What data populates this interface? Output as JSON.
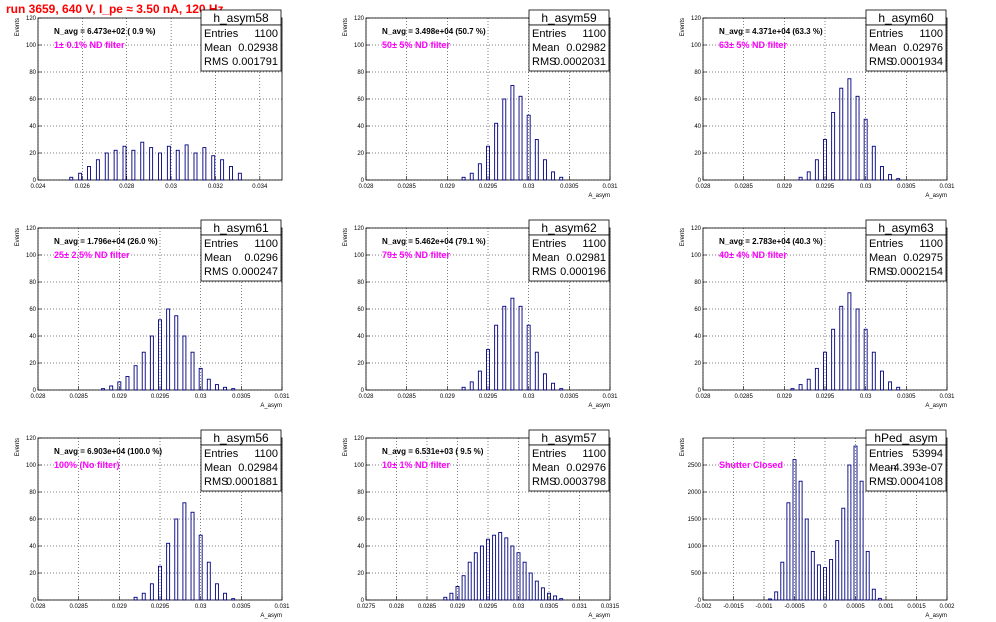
{
  "title": "run 3659,   640 V, I_pe ≈ 3.50 nA, 120 Hz",
  "stat_labels": {
    "entries": "Entries",
    "mean": "Mean",
    "rms": "RMS"
  },
  "chart_data": [
    {
      "type": "bar",
      "name": "h_asym58",
      "n_avg": "N_avg = 6.473e+02 ( 0.9 %)",
      "filter": "1± 0.1% ND filter",
      "entries": "1100",
      "mean": "0.02938",
      "rms": "0.001791",
      "xlim": [
        0.024,
        0.035
      ],
      "ylim": [
        0,
        120
      ],
      "xticks": [
        "0.024",
        "0.026",
        "0.028",
        "0.03",
        "0.032",
        "0.034"
      ],
      "xtick_vals": [
        0.024,
        0.026,
        0.028,
        0.03,
        0.032,
        0.034
      ],
      "yticks": [
        0,
        20,
        40,
        60,
        80,
        100,
        120
      ],
      "xlabel": "",
      "ylabel": "Events",
      "x": [
        0.0255,
        0.0259,
        0.0263,
        0.0267,
        0.0271,
        0.0275,
        0.0279,
        0.0283,
        0.0287,
        0.0291,
        0.0295,
        0.0299,
        0.0303,
        0.0307,
        0.0311,
        0.0315,
        0.0319,
        0.0323,
        0.0327,
        0.0331
      ],
      "values": [
        2,
        5,
        10,
        15,
        20,
        22,
        25,
        22,
        28,
        24,
        20,
        25,
        22,
        26,
        20,
        24,
        18,
        15,
        10,
        5
      ]
    },
    {
      "type": "bar",
      "name": "h_asym59",
      "n_avg": "N_avg = 3.498e+04 (50.7 %)",
      "filter": "50± 5% ND filter",
      "entries": "1100",
      "mean": "0.02982",
      "rms": "0.0002031",
      "xlim": [
        0.028,
        0.031
      ],
      "ylim": [
        0,
        120
      ],
      "xticks": [
        "0.028",
        "0.0285",
        "0.029",
        "0.0295",
        "0.03",
        "0.0305",
        "0.031"
      ],
      "xtick_vals": [
        0.028,
        0.0285,
        0.029,
        0.0295,
        0.03,
        0.0305,
        0.031
      ],
      "yticks": [
        0,
        20,
        40,
        60,
        80,
        100,
        120
      ],
      "xlabel": "A_asym",
      "ylabel": "Events",
      "x": [
        0.0292,
        0.0293,
        0.0294,
        0.0295,
        0.0296,
        0.0297,
        0.0298,
        0.0299,
        0.03,
        0.0301,
        0.0302,
        0.0303,
        0.0304
      ],
      "values": [
        2,
        5,
        12,
        25,
        42,
        60,
        70,
        62,
        48,
        30,
        15,
        6,
        2
      ]
    },
    {
      "type": "bar",
      "name": "h_asym60",
      "n_avg": "N_avg = 4.371e+04 (63.3 %)",
      "filter": "63± 5% ND filter",
      "entries": "1100",
      "mean": "0.02976",
      "rms": "0.0001934",
      "xlim": [
        0.028,
        0.031
      ],
      "ylim": [
        0,
        120
      ],
      "xticks": [
        "0.028",
        "0.0285",
        "0.029",
        "0.0295",
        "0.03",
        "0.0305",
        "0.031"
      ],
      "xtick_vals": [
        0.028,
        0.0285,
        0.029,
        0.0295,
        0.03,
        0.0305,
        0.031
      ],
      "yticks": [
        0,
        20,
        40,
        60,
        80,
        100,
        120
      ],
      "xlabel": "A_asym",
      "ylabel": "Events",
      "x": [
        0.0292,
        0.0293,
        0.0294,
        0.0295,
        0.0296,
        0.0297,
        0.0298,
        0.0299,
        0.03,
        0.0301,
        0.0302,
        0.0303,
        0.0304
      ],
      "values": [
        2,
        6,
        15,
        30,
        50,
        68,
        75,
        62,
        45,
        25,
        10,
        4,
        1
      ]
    },
    {
      "type": "bar",
      "name": "h_asym61",
      "n_avg": "N_avg = 1.796e+04 (26.0 %)",
      "filter": "25± 2.5% ND filter",
      "entries": "1100",
      "mean": "0.0296",
      "rms": "0.000247",
      "xlim": [
        0.028,
        0.031
      ],
      "ylim": [
        0,
        120
      ],
      "xticks": [
        "0.028",
        "0.0285",
        "0.029",
        "0.0295",
        "0.03",
        "0.0305",
        "0.031"
      ],
      "xtick_vals": [
        0.028,
        0.0285,
        0.029,
        0.0295,
        0.03,
        0.0305,
        0.031
      ],
      "yticks": [
        0,
        20,
        40,
        60,
        80,
        100,
        120
      ],
      "xlabel": "A_asym",
      "ylabel": "Events",
      "x": [
        0.0288,
        0.0289,
        0.029,
        0.0291,
        0.0292,
        0.0293,
        0.0294,
        0.0295,
        0.0296,
        0.0297,
        0.0298,
        0.0299,
        0.03,
        0.0301,
        0.0302,
        0.0303,
        0.0304
      ],
      "values": [
        1,
        3,
        6,
        10,
        18,
        28,
        40,
        52,
        60,
        55,
        40,
        28,
        16,
        8,
        4,
        2,
        1
      ]
    },
    {
      "type": "bar",
      "name": "h_asym62",
      "n_avg": "N_avg = 5.462e+04 (79.1 %)",
      "filter": "79± 5% ND filter",
      "entries": "1100",
      "mean": "0.02981",
      "rms": "0.000196",
      "xlim": [
        0.028,
        0.031
      ],
      "ylim": [
        0,
        120
      ],
      "xticks": [
        "0.028",
        "0.0285",
        "0.029",
        "0.0295",
        "0.03",
        "0.0305",
        "0.031"
      ],
      "xtick_vals": [
        0.028,
        0.0285,
        0.029,
        0.0295,
        0.03,
        0.0305,
        0.031
      ],
      "yticks": [
        0,
        20,
        40,
        60,
        80,
        100,
        120
      ],
      "xlabel": "A_asym",
      "ylabel": "Events",
      "x": [
        0.0292,
        0.0293,
        0.0294,
        0.0295,
        0.0296,
        0.0297,
        0.0298,
        0.0299,
        0.03,
        0.0301,
        0.0302,
        0.0303,
        0.0304
      ],
      "values": [
        2,
        6,
        14,
        30,
        48,
        62,
        68,
        62,
        48,
        28,
        12,
        5,
        1
      ]
    },
    {
      "type": "bar",
      "name": "h_asym63",
      "n_avg": "N_avg = 2.783e+04 (40.3 %)",
      "filter": "40± 4% ND filter",
      "entries": "1100",
      "mean": "0.02975",
      "rms": "0.0002154",
      "xlim": [
        0.028,
        0.031
      ],
      "ylim": [
        0,
        120
      ],
      "xticks": [
        "0.028",
        "0.0285",
        "0.029",
        "0.0295",
        "0.03",
        "0.0305",
        "0.031"
      ],
      "xtick_vals": [
        0.028,
        0.0285,
        0.029,
        0.0295,
        0.03,
        0.0305,
        0.031
      ],
      "yticks": [
        0,
        20,
        40,
        60,
        80,
        100,
        120
      ],
      "xlabel": "A_asym",
      "ylabel": "Events",
      "x": [
        0.0291,
        0.0292,
        0.0293,
        0.0294,
        0.0295,
        0.0296,
        0.0297,
        0.0298,
        0.0299,
        0.03,
        0.0301,
        0.0302,
        0.0303,
        0.0304
      ],
      "values": [
        1,
        4,
        8,
        16,
        28,
        45,
        62,
        72,
        60,
        45,
        28,
        14,
        6,
        2
      ]
    },
    {
      "type": "bar",
      "name": "h_asym56",
      "n_avg": "N_avg = 6.903e+04 (100.0 %)",
      "filter": "100% (No filter)",
      "entries": "1100",
      "mean": "0.02984",
      "rms": "0.0001881",
      "xlim": [
        0.028,
        0.031
      ],
      "ylim": [
        0,
        120
      ],
      "xticks": [
        "0.028",
        "0.0285",
        "0.029",
        "0.0295",
        "0.03",
        "0.0305",
        "0.031"
      ],
      "xtick_vals": [
        0.028,
        0.0285,
        0.029,
        0.0295,
        0.03,
        0.0305,
        0.031
      ],
      "yticks": [
        0,
        20,
        40,
        60,
        80,
        100,
        120
      ],
      "xlabel": "A_asym",
      "ylabel": "Events",
      "x": [
        0.0292,
        0.0293,
        0.0294,
        0.0295,
        0.0296,
        0.0297,
        0.0298,
        0.0299,
        0.03,
        0.0301,
        0.0302,
        0.0303,
        0.0304
      ],
      "values": [
        2,
        5,
        12,
        25,
        42,
        60,
        72,
        65,
        48,
        28,
        12,
        5,
        1
      ]
    },
    {
      "type": "bar",
      "name": "h_asym57",
      "n_avg": "N_avg = 6.531e+03 ( 9.5 %)",
      "filter": "10± 1% ND filter",
      "entries": "1100",
      "mean": "0.02976",
      "rms": "0.0003798",
      "xlim": [
        0.0275,
        0.0315
      ],
      "ylim": [
        0,
        120
      ],
      "xticks": [
        "0.0275",
        "0.028",
        "0.0285",
        "0.029",
        "0.0295",
        "0.03",
        "0.0305",
        "0.031",
        "0.0315"
      ],
      "xtick_vals": [
        0.0275,
        0.028,
        0.0285,
        0.029,
        0.0295,
        0.03,
        0.0305,
        0.031,
        0.0315
      ],
      "yticks": [
        0,
        20,
        40,
        60,
        80,
        100,
        120
      ],
      "xlabel": "A_asym",
      "ylabel": "Events",
      "x": [
        0.0288,
        0.0289,
        0.029,
        0.0291,
        0.0292,
        0.0293,
        0.0294,
        0.0295,
        0.0296,
        0.0297,
        0.0298,
        0.0299,
        0.03,
        0.0301,
        0.0302,
        0.0303,
        0.0304,
        0.0305,
        0.0306,
        0.0307
      ],
      "values": [
        2,
        5,
        10,
        18,
        28,
        35,
        40,
        45,
        48,
        50,
        46,
        40,
        35,
        28,
        20,
        14,
        9,
        5,
        3,
        1
      ]
    },
    {
      "type": "bar",
      "name": "hPed_asym",
      "n_avg": "",
      "filter": "Shutter Closed",
      "entries": "53994",
      "mean": "-4.393e-07",
      "rms": "0.0004108",
      "xlim": [
        -0.002,
        0.002
      ],
      "ylim": [
        0,
        3000
      ],
      "xticks": [
        "-0.002",
        "-0.0015",
        "-0.001",
        "-0.0005",
        "0",
        "0.0005",
        "0.001",
        "0.0015",
        "0.002"
      ],
      "xtick_vals": [
        -0.002,
        -0.0015,
        -0.001,
        -0.0005,
        0,
        0.0005,
        0.001,
        0.0015,
        0.002
      ],
      "yticks": [
        0,
        500,
        1000,
        1500,
        2000,
        2500
      ],
      "xlabel": "A_asym",
      "ylabel": "Events",
      "x": [
        -0.0009,
        -0.0008,
        -0.0007,
        -0.0006,
        -0.0005,
        -0.0004,
        -0.0003,
        -0.0002,
        -0.0001,
        0,
        0.0001,
        0.0002,
        0.0003,
        0.0004,
        0.0005,
        0.0006,
        0.0007,
        0.0008,
        0.0009
      ],
      "values": [
        20,
        150,
        700,
        1800,
        2600,
        2200,
        1500,
        900,
        650,
        600,
        750,
        1100,
        1700,
        2500,
        2850,
        2200,
        900,
        200,
        30
      ]
    }
  ]
}
